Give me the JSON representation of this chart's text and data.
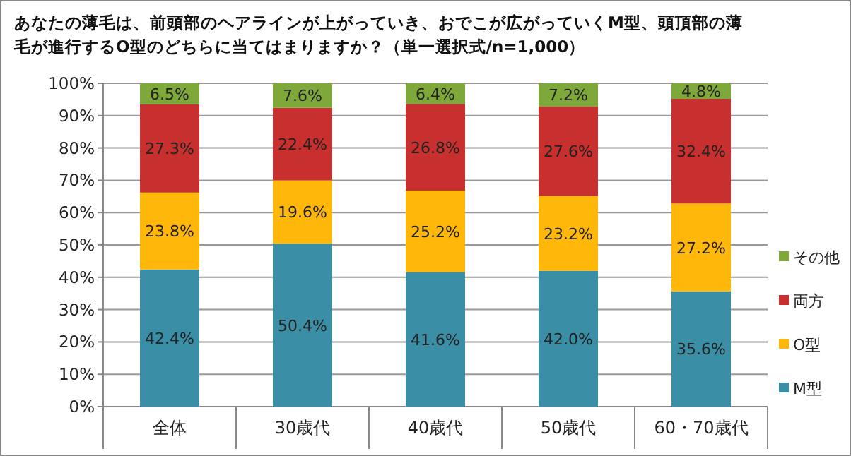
{
  "chart_data": {
    "type": "bar",
    "stacked": true,
    "title": "あなたの薄毛は、前頭部のヘアラインが上がっていき、おでこが広がっていくM型、頭頂部の薄毛が進行するO型のどちらに当てはまりますか？（単一選択式/n=1,000）",
    "categories": [
      "全体",
      "30歳代",
      "40歳代",
      "50歳代",
      "60・70歳代"
    ],
    "series": [
      {
        "name": "M型",
        "color": "#3a8fa6",
        "values": [
          42.4,
          50.4,
          41.6,
          42.0,
          35.6
        ],
        "value_labels": [
          "42.4%",
          "50.4%",
          "41.6%",
          "42.0%",
          "35.6%"
        ]
      },
      {
        "name": "O型",
        "color": "#ffb80a",
        "values": [
          23.8,
          19.6,
          25.2,
          23.2,
          27.2
        ],
        "value_labels": [
          "23.8%",
          "19.6%",
          "25.2%",
          "23.2%",
          "27.2%"
        ]
      },
      {
        "name": "両方",
        "color": "#c7302e",
        "values": [
          27.3,
          22.4,
          26.8,
          27.6,
          32.4
        ],
        "value_labels": [
          "27.3%",
          "22.4%",
          "26.8%",
          "27.6%",
          "32.4%"
        ]
      },
      {
        "name": "その他",
        "color": "#7ea83a",
        "values": [
          6.5,
          7.6,
          6.4,
          7.2,
          4.8
        ],
        "value_labels": [
          "6.5%",
          "7.6%",
          "6.4%",
          "7.2%",
          "4.8%"
        ]
      }
    ],
    "ylim": [
      0,
      100
    ],
    "yticks": [
      {
        "value": 0,
        "label": "0%"
      },
      {
        "value": 10,
        "label": "10%"
      },
      {
        "value": 20,
        "label": "20%"
      },
      {
        "value": 30,
        "label": "30%"
      },
      {
        "value": 40,
        "label": "40%"
      },
      {
        "value": 50,
        "label": "50%"
      },
      {
        "value": 60,
        "label": "60%"
      },
      {
        "value": 70,
        "label": "70%"
      },
      {
        "value": 80,
        "label": "80%"
      },
      {
        "value": 90,
        "label": "90%"
      },
      {
        "value": 100,
        "label": "100%"
      }
    ],
    "grid": "y",
    "legend": "right"
  }
}
